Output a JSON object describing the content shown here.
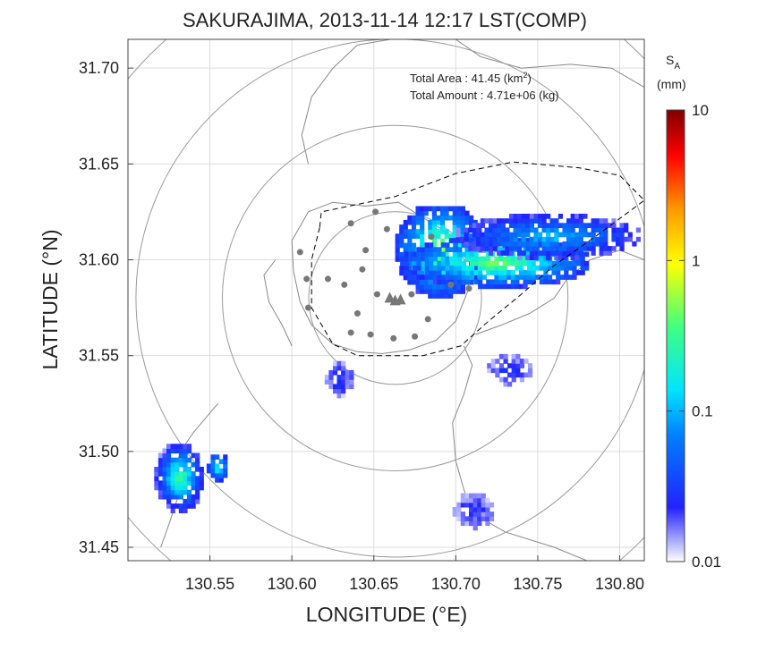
{
  "chart_data": {
    "type": "heatmap",
    "title": "SAKURAJIMA, 2013-11-14 12:17 LST(COMP)",
    "xlabel": "LONGITUDE (°E)",
    "ylabel": "LATITUDE (°N)",
    "xlim": [
      130.5,
      130.815
    ],
    "ylim": [
      31.443,
      31.715
    ],
    "xticks": [
      130.55,
      130.6,
      130.65,
      130.7,
      130.75,
      130.8
    ],
    "xtick_labels": [
      "130.55",
      "130.60",
      "130.65",
      "130.70",
      "130.75",
      "130.80"
    ],
    "yticks": [
      31.45,
      31.5,
      31.55,
      31.6,
      31.65,
      31.7
    ],
    "ytick_labels": [
      "31.45",
      "31.50",
      "31.55",
      "31.60",
      "31.65",
      "31.70"
    ],
    "grid": true,
    "stats": {
      "area_label": "Total Area   : 41.45 (km",
      "area_unit_sup": "2",
      "area_close": ")",
      "amount_label": "Total Amount : 4.71e+06 (kg)"
    },
    "colorbar": {
      "label_main": "S",
      "label_sub": "A",
      "unit": "(mm)",
      "scale": "log",
      "range": [
        0.01,
        10
      ],
      "ticks": [
        10,
        1,
        0.1,
        0.01
      ],
      "tick_labels": [
        "10",
        "1",
        "0.1",
        "0.01"
      ],
      "colors": [
        "#ffffff",
        "#2222ff",
        "#0080ff",
        "#00e5ff",
        "#40ff80",
        "#ffff00",
        "#ff9900",
        "#ff0000",
        "#800000"
      ]
    },
    "vent": [
      130.663,
      31.58
    ],
    "range_rings_km": [
      5,
      10,
      15,
      20
    ],
    "stations": [
      [
        130.651,
        31.625
      ],
      [
        130.636,
        31.619
      ],
      [
        130.605,
        31.604
      ],
      [
        130.658,
        31.616
      ],
      [
        130.645,
        31.605
      ],
      [
        130.685,
        31.612
      ],
      [
        130.609,
        31.59
      ],
      [
        130.622,
        31.59
      ],
      [
        130.643,
        31.595
      ],
      [
        130.632,
        31.587
      ],
      [
        130.61,
        31.575
      ],
      [
        130.652,
        31.582
      ],
      [
        130.673,
        31.582
      ],
      [
        130.697,
        31.587
      ],
      [
        130.708,
        31.585
      ],
      [
        130.64,
        31.572
      ],
      [
        130.683,
        31.569
      ],
      [
        130.636,
        31.562
      ],
      [
        130.648,
        31.561
      ],
      [
        130.662,
        31.559
      ],
      [
        130.675,
        31.56
      ]
    ],
    "clusters": [
      {
        "lon": [
          130.663,
          130.716
        ],
        "lat": [
          31.58,
          31.628
        ],
        "peak": 0.6,
        "min": 0.03
      },
      {
        "lon": [
          130.666,
          130.78
        ],
        "lat": [
          31.585,
          31.61
        ],
        "peak": 0.5,
        "min": 0.03
      },
      {
        "lon": [
          130.7,
          130.81
        ],
        "lat": [
          31.6,
          31.622
        ],
        "peak": 0.12,
        "min": 0.02
      },
      {
        "lon": [
          130.62,
          130.636
        ],
        "lat": [
          31.528,
          31.545
        ],
        "peak": 0.03,
        "min": 0.015
      },
      {
        "lon": [
          130.719,
          130.745
        ],
        "lat": [
          31.534,
          31.549
        ],
        "peak": 0.03,
        "min": 0.015
      },
      {
        "lon": [
          130.516,
          130.545
        ],
        "lat": [
          31.468,
          31.503
        ],
        "peak": 0.35,
        "min": 0.02
      },
      {
        "lon": [
          130.548,
          130.56
        ],
        "lat": [
          31.484,
          31.498
        ],
        "peak": 0.25,
        "min": 0.03
      },
      {
        "lon": [
          130.698,
          130.722
        ],
        "lat": [
          31.459,
          31.477
        ],
        "peak": 0.025,
        "min": 0.015
      }
    ]
  }
}
